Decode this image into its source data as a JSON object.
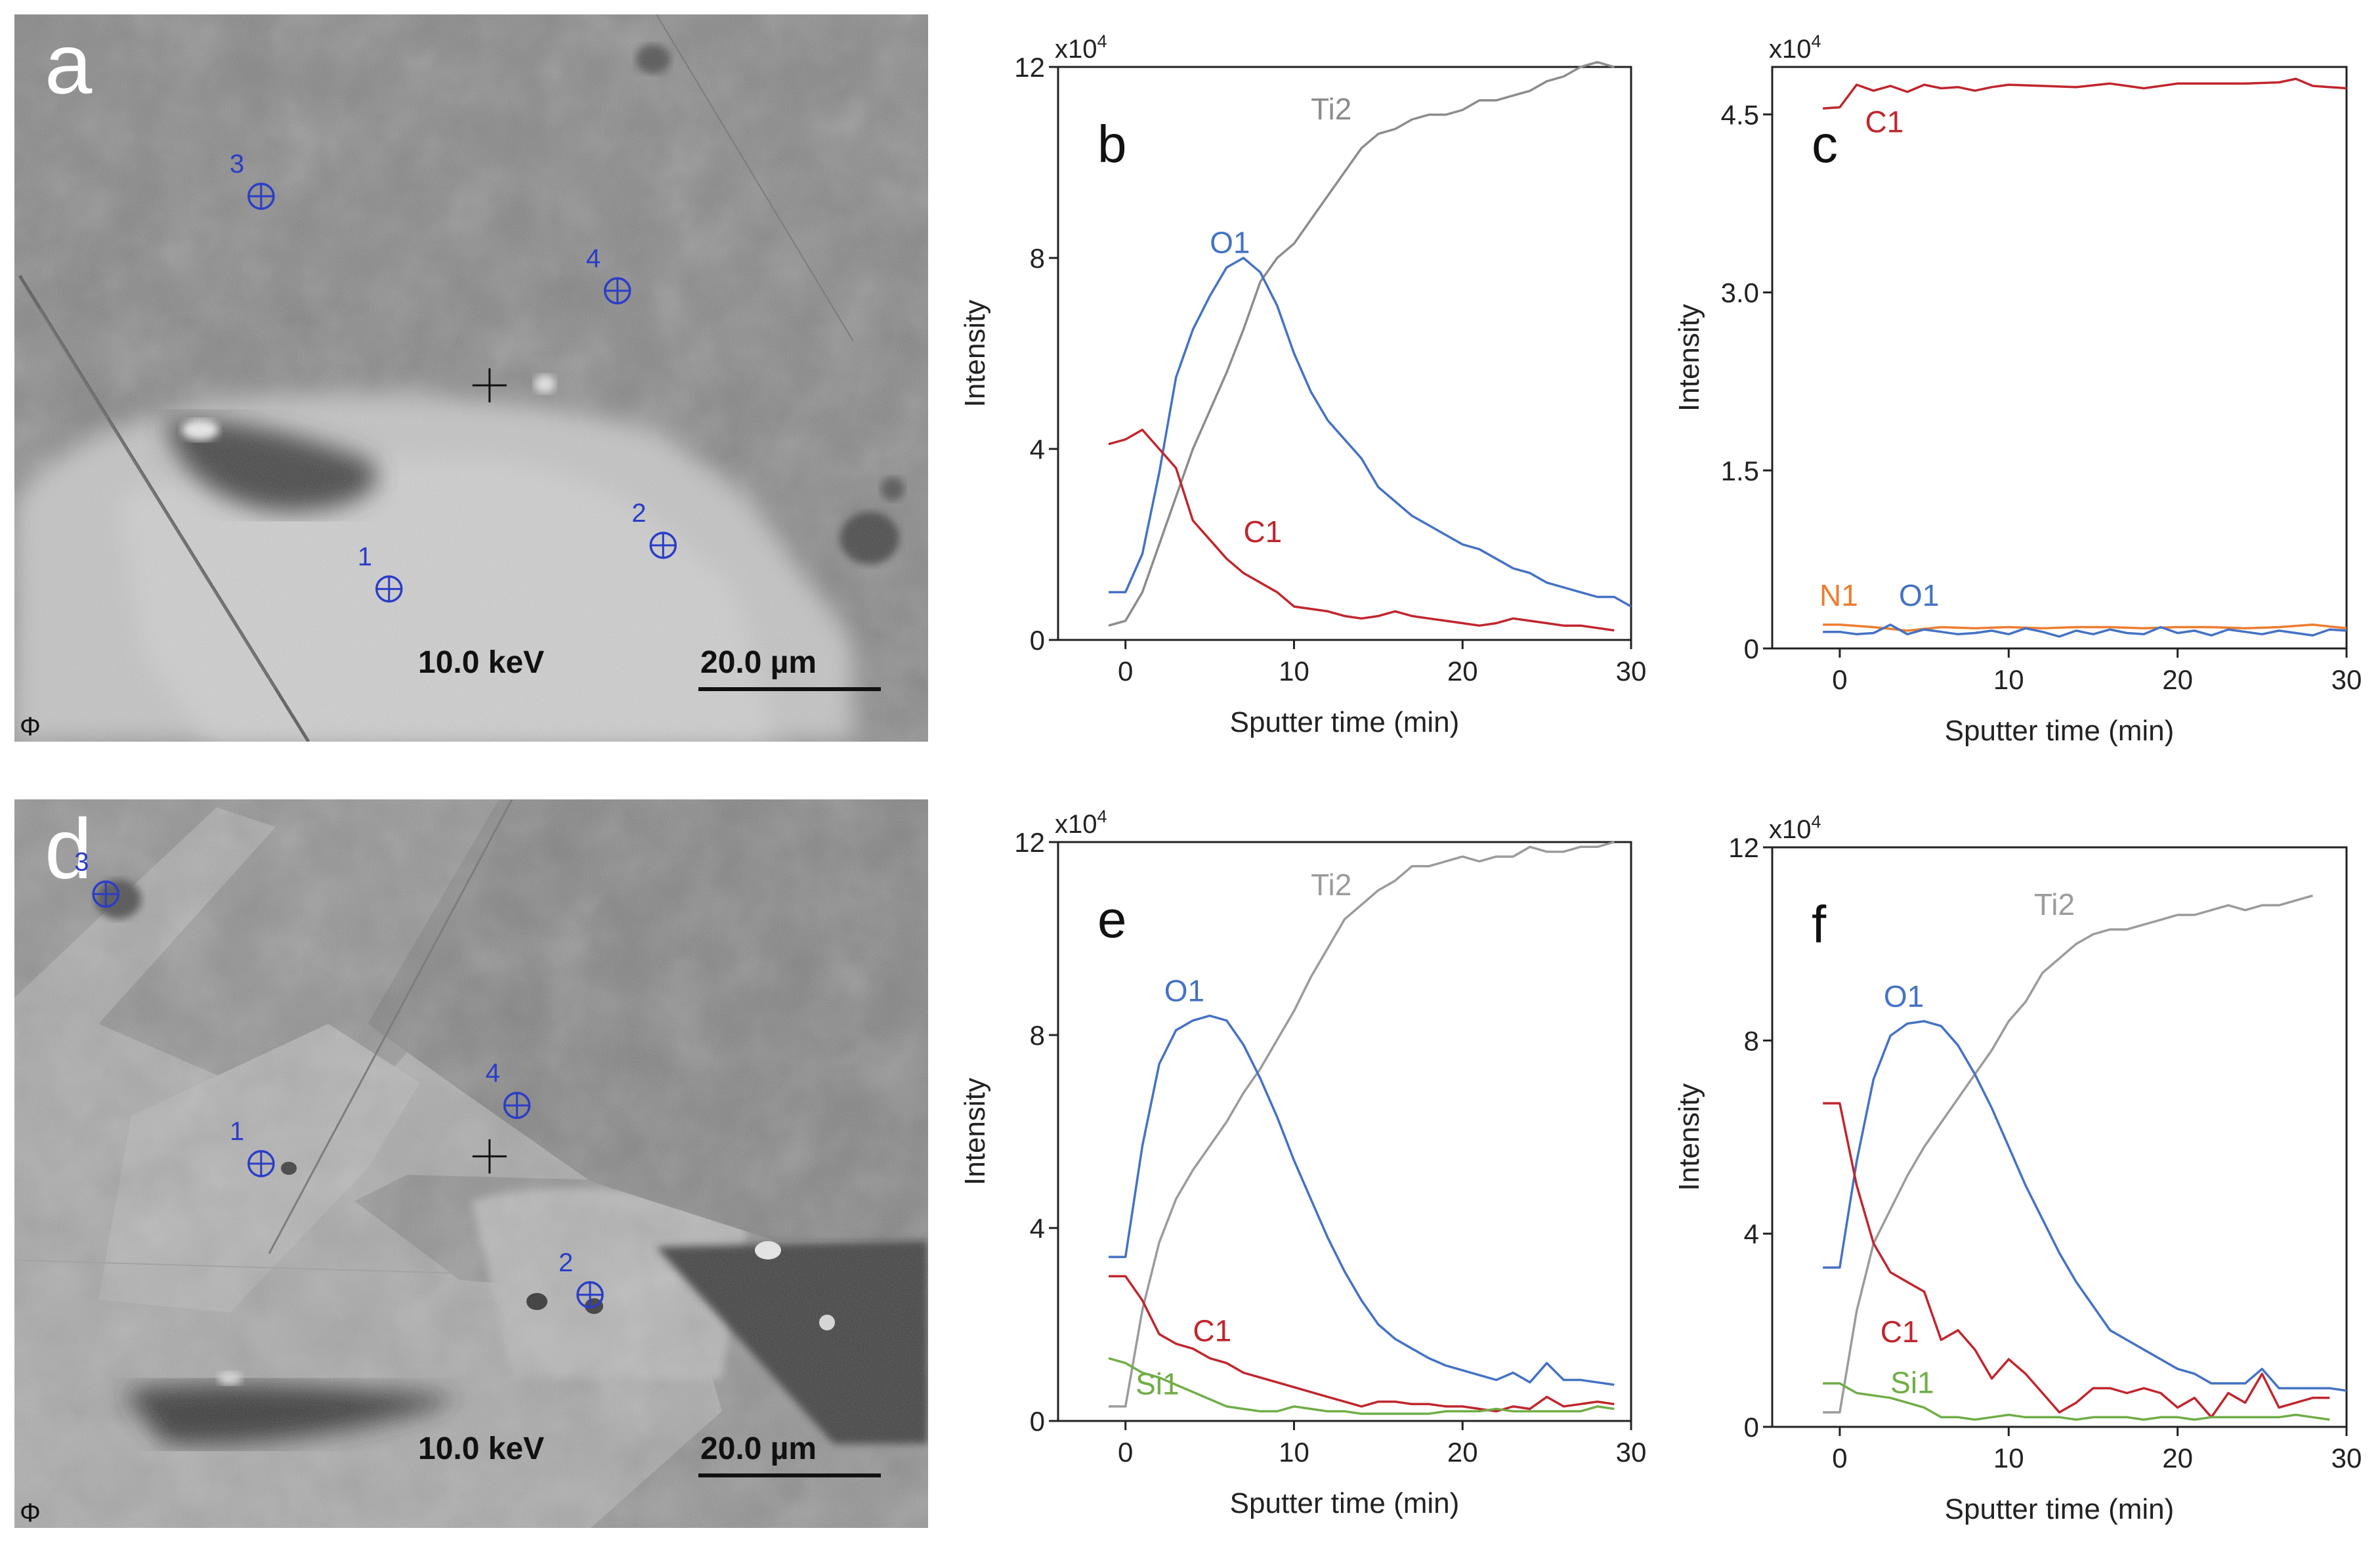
{
  "micrographs": [
    {
      "panel": "a",
      "voltage": "10.0 keV",
      "scale": "20.0 µm",
      "logo": "Φ",
      "points": [
        {
          "label": "1",
          "x": 0.41,
          "y": 0.79
        },
        {
          "label": "2",
          "x": 0.71,
          "y": 0.73
        },
        {
          "label": "3",
          "x": 0.27,
          "y": 0.25
        },
        {
          "label": "4",
          "x": 0.66,
          "y": 0.38
        }
      ]
    },
    {
      "panel": "d",
      "voltage": "10.0 keV",
      "scale": "20.0 µm",
      "logo": "Φ",
      "points": [
        {
          "label": "1",
          "x": 0.27,
          "y": 0.5
        },
        {
          "label": "2",
          "x": 0.63,
          "y": 0.68
        },
        {
          "label": "3",
          "x": 0.1,
          "y": 0.13
        },
        {
          "label": "4",
          "x": 0.55,
          "y": 0.42
        }
      ]
    }
  ],
  "chart_data": [
    {
      "panel": "b",
      "type": "line",
      "multiplier": "x10",
      "multiplier_exp": "4",
      "xlabel": "Sputter time (min)",
      "ylabel": "Intensity",
      "xlim": [
        -4,
        30
      ],
      "ylim": [
        0,
        12
      ],
      "xticks": [
        0,
        10,
        20,
        30
      ],
      "yticks": [
        0,
        4,
        8,
        12
      ],
      "ytick_labels": [
        "0",
        "4",
        "8",
        "12"
      ],
      "series": [
        {
          "name": "Ti2",
          "color": "#8c8c8c",
          "label_at": [
            11,
            10.9
          ],
          "x": [
            -1,
            0,
            1,
            2,
            3,
            4,
            5,
            6,
            7,
            8,
            9,
            10,
            11,
            12,
            13,
            14,
            15,
            16,
            17,
            18,
            19,
            20,
            21,
            22,
            23,
            24,
            25,
            26,
            27,
            28,
            29
          ],
          "y": [
            0.3,
            0.4,
            1.0,
            2.0,
            3.0,
            4.0,
            4.8,
            5.6,
            6.5,
            7.5,
            8.0,
            8.3,
            8.8,
            9.3,
            9.8,
            10.3,
            10.6,
            10.7,
            10.9,
            11.0,
            11.0,
            11.1,
            11.3,
            11.3,
            11.4,
            11.5,
            11.7,
            11.8,
            12.0,
            12.1,
            12.0
          ]
        },
        {
          "name": "O1",
          "color": "#4472c4",
          "label_at": [
            5,
            8.1
          ],
          "x": [
            -1,
            0,
            1,
            2,
            3,
            4,
            5,
            6,
            7,
            8,
            9,
            10,
            11,
            12,
            13,
            14,
            15,
            16,
            17,
            18,
            19,
            20,
            21,
            22,
            23,
            24,
            25,
            26,
            27,
            28,
            29,
            30
          ],
          "y": [
            1.0,
            1.0,
            1.8,
            3.5,
            5.5,
            6.5,
            7.2,
            7.8,
            8.0,
            7.7,
            7.0,
            6.0,
            5.2,
            4.6,
            4.2,
            3.8,
            3.2,
            2.9,
            2.6,
            2.4,
            2.2,
            2.0,
            1.9,
            1.7,
            1.5,
            1.4,
            1.2,
            1.1,
            1.0,
            0.9,
            0.9,
            0.7
          ]
        },
        {
          "name": "C1",
          "color": "#c0262d",
          "label_at": [
            7,
            2.05
          ],
          "x": [
            -1,
            0,
            1,
            2,
            3,
            4,
            5,
            6,
            7,
            8,
            9,
            10,
            12,
            13,
            14,
            15,
            16,
            17,
            18,
            19,
            20,
            21,
            22,
            23,
            24,
            25,
            26,
            27,
            28,
            29
          ],
          "y": [
            4.1,
            4.2,
            4.4,
            4.0,
            3.6,
            2.5,
            2.1,
            1.7,
            1.4,
            1.2,
            1.0,
            0.7,
            0.6,
            0.5,
            0.45,
            0.5,
            0.6,
            0.5,
            0.45,
            0.4,
            0.35,
            0.3,
            0.35,
            0.45,
            0.4,
            0.35,
            0.3,
            0.3,
            0.25,
            0.2
          ]
        }
      ]
    },
    {
      "panel": "c",
      "type": "line",
      "multiplier": "x10",
      "multiplier_exp": "4",
      "xlabel": "Sputter time (min)",
      "ylabel": "Intensity",
      "xlim": [
        -4,
        30
      ],
      "ylim": [
        0,
        4.9
      ],
      "xticks": [
        0,
        10,
        20,
        30
      ],
      "yticks": [
        0,
        1.5,
        3.0,
        4.5
      ],
      "ytick_labels": [
        "0",
        "1.5",
        "3.0",
        "4.5"
      ],
      "series": [
        {
          "name": "C1",
          "color": "#c0262d",
          "label_at": [
            1.5,
            4.35
          ],
          "x": [
            -1,
            0,
            1,
            2,
            3,
            4,
            5,
            6,
            7,
            8,
            9,
            10,
            12,
            14,
            16,
            18,
            20,
            22,
            24,
            26,
            27,
            28,
            29,
            30
          ],
          "y": [
            4.55,
            4.56,
            4.75,
            4.7,
            4.74,
            4.69,
            4.75,
            4.72,
            4.73,
            4.7,
            4.73,
            4.75,
            4.74,
            4.73,
            4.76,
            4.72,
            4.76,
            4.76,
            4.76,
            4.77,
            4.8,
            4.74,
            4.73,
            4.72
          ]
        },
        {
          "name": "N1",
          "color": "#ed7d31",
          "label_at": [
            -1.2,
            0.36
          ],
          "x": [
            -1,
            0,
            2,
            4,
            6,
            8,
            10,
            12,
            14,
            16,
            18,
            20,
            22,
            24,
            26,
            28,
            30
          ],
          "y": [
            0.2,
            0.2,
            0.18,
            0.15,
            0.18,
            0.17,
            0.18,
            0.17,
            0.18,
            0.18,
            0.17,
            0.18,
            0.18,
            0.17,
            0.18,
            0.2,
            0.17
          ]
        },
        {
          "name": "O1",
          "color": "#4472c4",
          "label_at": [
            3.5,
            0.36
          ],
          "x": [
            -1,
            0,
            1,
            2,
            3,
            4,
            5,
            6,
            7,
            8,
            9,
            10,
            11,
            12,
            13,
            14,
            15,
            16,
            17,
            18,
            19,
            20,
            21,
            22,
            23,
            24,
            25,
            26,
            27,
            28,
            29,
            30
          ],
          "y": [
            0.14,
            0.14,
            0.12,
            0.13,
            0.2,
            0.12,
            0.16,
            0.14,
            0.12,
            0.13,
            0.15,
            0.12,
            0.17,
            0.14,
            0.1,
            0.15,
            0.12,
            0.16,
            0.13,
            0.12,
            0.18,
            0.13,
            0.15,
            0.11,
            0.16,
            0.14,
            0.12,
            0.15,
            0.13,
            0.11,
            0.16,
            0.15
          ]
        }
      ]
    },
    {
      "panel": "e",
      "type": "line",
      "multiplier": "x10",
      "multiplier_exp": "4",
      "xlabel": "Sputter time (min)",
      "ylabel": "Intensity",
      "xlim": [
        -4,
        30
      ],
      "ylim": [
        0,
        12
      ],
      "xticks": [
        0,
        10,
        20,
        30
      ],
      "yticks": [
        0,
        4,
        8,
        12
      ],
      "ytick_labels": [
        "0",
        "4",
        "8",
        "12"
      ],
      "series": [
        {
          "name": "Ti2",
          "color": "#9b9b9b",
          "label_at": [
            11,
            10.9
          ],
          "x": [
            -1,
            0,
            1,
            2,
            3,
            4,
            5,
            6,
            7,
            8,
            9,
            10,
            11,
            12,
            13,
            14,
            15,
            16,
            17,
            18,
            19,
            20,
            21,
            22,
            23,
            24,
            25,
            26,
            27,
            28,
            29
          ],
          "y": [
            0.3,
            0.3,
            2.3,
            3.7,
            4.6,
            5.2,
            5.7,
            6.2,
            6.8,
            7.3,
            7.9,
            8.5,
            9.2,
            9.8,
            10.4,
            10.7,
            11.0,
            11.2,
            11.5,
            11.5,
            11.6,
            11.7,
            11.6,
            11.7,
            11.7,
            11.9,
            11.8,
            11.8,
            11.9,
            11.9,
            12.0
          ]
        },
        {
          "name": "O1",
          "color": "#4472c4",
          "label_at": [
            2.3,
            8.7
          ],
          "x": [
            -1,
            0,
            1,
            2,
            3,
            4,
            5,
            6,
            7,
            8,
            9,
            10,
            11,
            12,
            13,
            14,
            15,
            16,
            17,
            18,
            19,
            20,
            21,
            22,
            23,
            24,
            25,
            26,
            27,
            28,
            29
          ],
          "y": [
            3.4,
            3.4,
            5.7,
            7.4,
            8.1,
            8.3,
            8.4,
            8.3,
            7.8,
            7.1,
            6.3,
            5.4,
            4.6,
            3.8,
            3.1,
            2.5,
            2.0,
            1.7,
            1.5,
            1.3,
            1.15,
            1.05,
            0.95,
            0.85,
            1.0,
            0.8,
            1.2,
            0.85,
            0.85,
            0.8,
            0.75
          ]
        },
        {
          "name": "C1",
          "color": "#c0262d",
          "label_at": [
            4,
            1.65
          ],
          "x": [
            -1,
            0,
            1,
            2,
            3,
            4,
            5,
            6,
            7,
            8,
            9,
            10,
            11,
            12,
            13,
            14,
            15,
            16,
            17,
            18,
            19,
            20,
            21,
            22,
            23,
            24,
            25,
            26,
            27,
            28,
            29
          ],
          "y": [
            3.0,
            3.0,
            2.5,
            1.8,
            1.6,
            1.5,
            1.3,
            1.2,
            1.0,
            0.9,
            0.8,
            0.7,
            0.6,
            0.5,
            0.4,
            0.3,
            0.4,
            0.4,
            0.35,
            0.35,
            0.3,
            0.3,
            0.25,
            0.2,
            0.3,
            0.25,
            0.5,
            0.3,
            0.35,
            0.4,
            0.35
          ]
        },
        {
          "name": "Si1",
          "color": "#70ad47",
          "label_at": [
            0.6,
            0.55
          ],
          "x": [
            -1,
            0,
            1,
            2,
            3,
            4,
            5,
            6,
            7,
            8,
            9,
            10,
            11,
            12,
            13,
            14,
            15,
            16,
            17,
            18,
            19,
            20,
            21,
            22,
            23,
            24,
            25,
            26,
            27,
            28,
            29
          ],
          "y": [
            1.3,
            1.2,
            1.0,
            0.9,
            0.75,
            0.6,
            0.45,
            0.3,
            0.25,
            0.2,
            0.2,
            0.3,
            0.25,
            0.2,
            0.2,
            0.15,
            0.15,
            0.15,
            0.15,
            0.15,
            0.2,
            0.2,
            0.2,
            0.25,
            0.2,
            0.2,
            0.2,
            0.2,
            0.2,
            0.3,
            0.25
          ]
        }
      ]
    },
    {
      "panel": "f",
      "type": "line",
      "multiplier": "x10",
      "multiplier_exp": "4",
      "xlabel": "Sputter time (min)",
      "ylabel": "Intensity",
      "xlim": [
        -4,
        30
      ],
      "ylim": [
        0,
        12
      ],
      "xticks": [
        0,
        10,
        20,
        30
      ],
      "yticks": [
        0,
        4,
        8,
        12
      ],
      "ytick_labels": [
        "0",
        "4",
        "8",
        "12"
      ],
      "series": [
        {
          "name": "Ti2",
          "color": "#9b9b9b",
          "label_at": [
            11.5,
            10.6
          ],
          "x": [
            -1,
            0,
            1,
            2,
            3,
            4,
            5,
            6,
            7,
            8,
            9,
            10,
            11,
            12,
            13,
            14,
            15,
            16,
            17,
            18,
            19,
            20,
            21,
            22,
            23,
            24,
            25,
            26,
            27,
            28
          ],
          "y": [
            0.3,
            0.3,
            2.4,
            3.8,
            4.5,
            5.2,
            5.8,
            6.3,
            6.8,
            7.3,
            7.8,
            8.4,
            8.8,
            9.4,
            9.7,
            10.0,
            10.2,
            10.3,
            10.3,
            10.4,
            10.5,
            10.6,
            10.6,
            10.7,
            10.8,
            10.7,
            10.8,
            10.8,
            10.9,
            11.0
          ]
        },
        {
          "name": "O1",
          "color": "#4472c4",
          "label_at": [
            2.6,
            8.7
          ],
          "x": [
            -1,
            0,
            1,
            2,
            3,
            4,
            5,
            6,
            7,
            8,
            9,
            10,
            11,
            12,
            13,
            14,
            15,
            16,
            17,
            18,
            19,
            20,
            21,
            22,
            23,
            24,
            25,
            26,
            27,
            28,
            29,
            30
          ],
          "y": [
            3.3,
            3.3,
            5.5,
            7.2,
            8.1,
            8.35,
            8.4,
            8.3,
            7.9,
            7.3,
            6.6,
            5.8,
            5.0,
            4.3,
            3.6,
            3.0,
            2.5,
            2.0,
            1.8,
            1.6,
            1.4,
            1.2,
            1.1,
            0.9,
            0.9,
            0.9,
            1.2,
            0.8,
            0.8,
            0.8,
            0.8,
            0.75
          ]
        },
        {
          "name": "C1",
          "color": "#c0262d",
          "label_at": [
            2.4,
            1.75
          ],
          "x": [
            -1,
            0,
            1,
            2,
            3,
            4,
            5,
            6,
            7,
            8,
            9,
            10,
            11,
            12,
            13,
            14,
            15,
            16,
            17,
            18,
            19,
            20,
            21,
            22,
            23,
            24,
            25,
            26,
            27,
            28,
            29
          ],
          "y": [
            6.7,
            6.7,
            5.0,
            3.8,
            3.2,
            3.0,
            2.8,
            1.8,
            2.0,
            1.6,
            1.0,
            1.4,
            1.1,
            0.7,
            0.3,
            0.5,
            0.8,
            0.8,
            0.7,
            0.8,
            0.7,
            0.4,
            0.6,
            0.2,
            0.7,
            0.5,
            1.1,
            0.4,
            0.5,
            0.6,
            0.6
          ]
        },
        {
          "name": "Si1",
          "color": "#70ad47",
          "label_at": [
            3,
            0.7
          ],
          "x": [
            -1,
            0,
            1,
            2,
            3,
            4,
            5,
            6,
            7,
            8,
            9,
            10,
            11,
            12,
            13,
            14,
            15,
            16,
            17,
            18,
            19,
            20,
            21,
            22,
            23,
            24,
            25,
            26,
            27,
            28,
            29
          ],
          "y": [
            0.9,
            0.9,
            0.7,
            0.65,
            0.6,
            0.5,
            0.4,
            0.2,
            0.2,
            0.15,
            0.2,
            0.25,
            0.2,
            0.2,
            0.2,
            0.15,
            0.2,
            0.2,
            0.2,
            0.15,
            0.2,
            0.2,
            0.15,
            0.2,
            0.2,
            0.2,
            0.2,
            0.2,
            0.25,
            0.2,
            0.15
          ]
        }
      ]
    }
  ]
}
